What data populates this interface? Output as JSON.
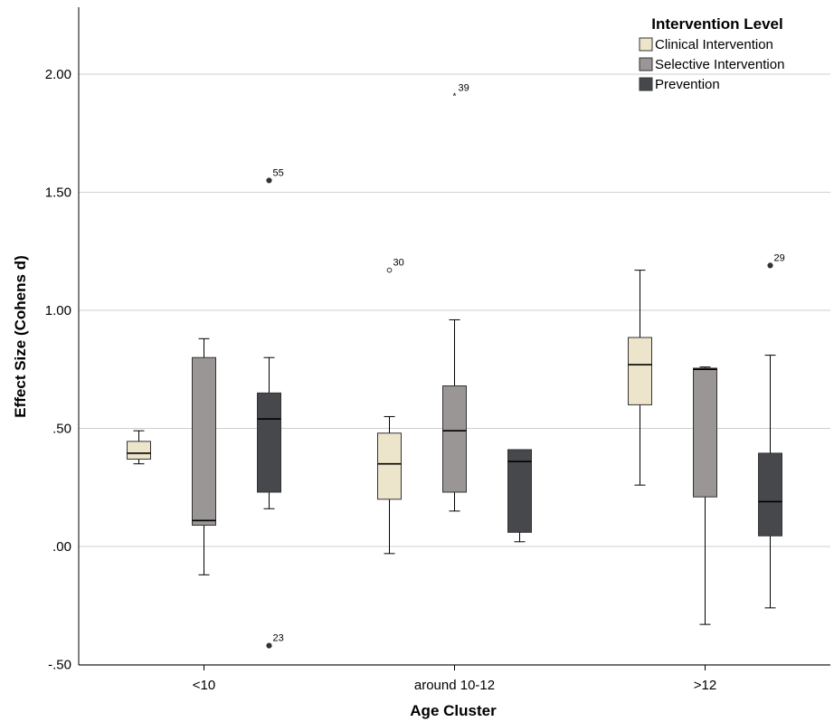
{
  "chart_data": {
    "type": "boxplot",
    "xlabel": "Age Cluster",
    "ylabel": "Effect Size (Cohens d)",
    "ylim": [
      -0.5,
      2.25
    ],
    "yticks": [
      {
        "value": 2.0,
        "label": "2.00"
      },
      {
        "value": 1.5,
        "label": "1.50"
      },
      {
        "value": 1.0,
        "label": "1.00"
      },
      {
        "value": 0.5,
        "label": ".50"
      },
      {
        "value": 0.0,
        "label": ".00"
      },
      {
        "value": -0.5,
        "label": "-.50"
      }
    ],
    "grid": true,
    "legend": {
      "title": "Intervention Level",
      "position": "top-right"
    },
    "categories": [
      "<10",
      "around 10-12",
      ">12"
    ],
    "series": [
      {
        "name": "Clinical Intervention",
        "color": "#ece4cb",
        "boxes": [
          {
            "whisker_low": 0.35,
            "q1": 0.37,
            "median": 0.395,
            "q3": 0.445,
            "whisker_high": 0.49
          },
          {
            "whisker_low": -0.03,
            "q1": 0.2,
            "median": 0.35,
            "q3": 0.48,
            "whisker_high": 0.55
          },
          {
            "whisker_low": 0.26,
            "q1": 0.6,
            "median": 0.77,
            "q3": 0.885,
            "whisker_high": 1.17
          }
        ],
        "outliers": [
          {
            "category": "around 10-12",
            "value": 1.17,
            "label": "30",
            "marker": "circle-open"
          }
        ]
      },
      {
        "name": "Selective Intervention",
        "color": "#9a9696",
        "boxes": [
          {
            "whisker_low": -0.12,
            "q1": 0.09,
            "median": 0.11,
            "q3": 0.8,
            "whisker_high": 0.88
          },
          {
            "whisker_low": 0.15,
            "q1": 0.23,
            "median": 0.49,
            "q3": 0.68,
            "whisker_high": 0.96
          },
          {
            "whisker_low": -0.33,
            "q1": 0.21,
            "median": 0.75,
            "q3": 0.755,
            "whisker_high": 0.76
          }
        ],
        "outliers": [
          {
            "category": "around 10-12",
            "value": 1.91,
            "label": "39",
            "marker": "star"
          }
        ]
      },
      {
        "name": "Prevention",
        "color": "#47484b",
        "boxes": [
          {
            "whisker_low": 0.16,
            "q1": 0.23,
            "median": 0.54,
            "q3": 0.65,
            "whisker_high": 0.8
          },
          {
            "whisker_low": 0.02,
            "q1": 0.06,
            "median": 0.36,
            "q3": 0.41,
            "whisker_high": 0.41
          },
          {
            "whisker_low": -0.26,
            "q1": 0.045,
            "median": 0.19,
            "q3": 0.395,
            "whisker_high": 0.81
          }
        ],
        "outliers": [
          {
            "category": "<10",
            "value": 1.55,
            "label": "55",
            "marker": "circle"
          },
          {
            "category": "<10",
            "value": -0.42,
            "label": "23",
            "marker": "circle"
          },
          {
            "category": ">12",
            "value": 1.19,
            "label": "29",
            "marker": "circle"
          }
        ]
      }
    ]
  }
}
